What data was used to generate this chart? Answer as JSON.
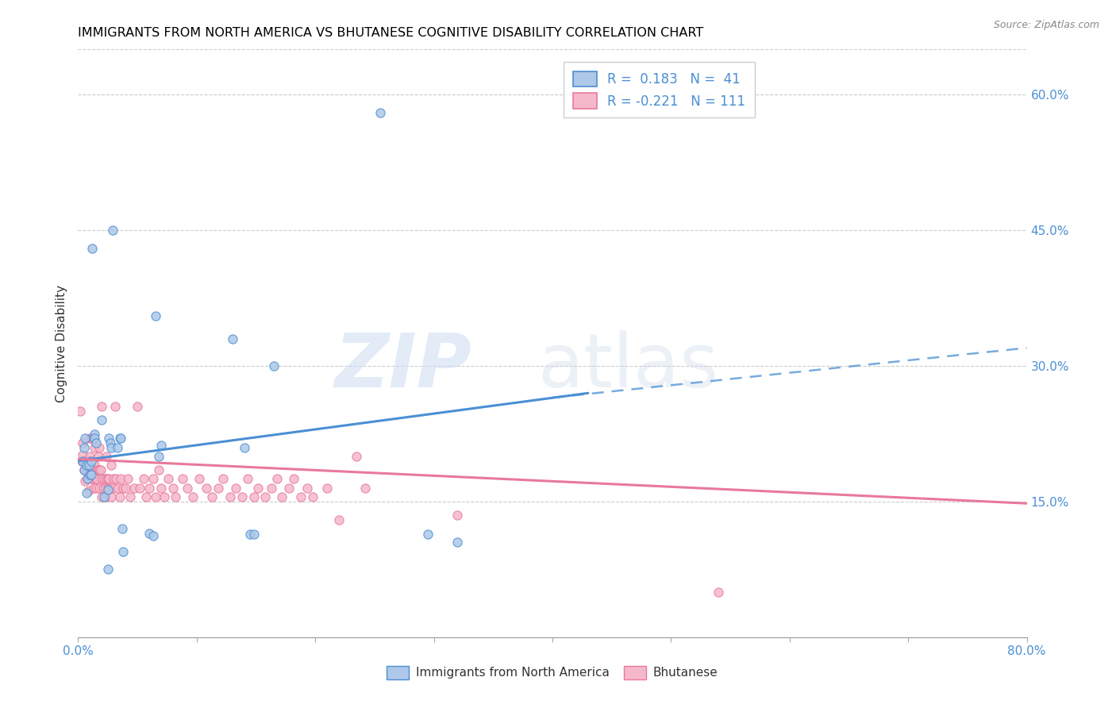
{
  "title": "IMMIGRANTS FROM NORTH AMERICA VS BHUTANESE COGNITIVE DISABILITY CORRELATION CHART",
  "source": "Source: ZipAtlas.com",
  "ylabel": "Cognitive Disability",
  "xlim": [
    0.0,
    0.8
  ],
  "ylim": [
    0.0,
    0.65
  ],
  "x_ticks": [
    0.0,
    0.1,
    0.2,
    0.3,
    0.4,
    0.5,
    0.6,
    0.7,
    0.8
  ],
  "y_ticks_right": [
    0.15,
    0.3,
    0.45,
    0.6
  ],
  "y_tick_labels_right": [
    "15.0%",
    "30.0%",
    "45.0%",
    "60.0%"
  ],
  "blue_color": "#adc8e8",
  "pink_color": "#f5b8cb",
  "line_blue": "#4a8fd4",
  "line_pink": "#e8799a",
  "blue_scatter": [
    [
      0.004,
      0.195
    ],
    [
      0.005,
      0.21
    ],
    [
      0.005,
      0.185
    ],
    [
      0.006,
      0.22
    ],
    [
      0.007,
      0.19
    ],
    [
      0.007,
      0.16
    ],
    [
      0.008,
      0.175
    ],
    [
      0.009,
      0.19
    ],
    [
      0.01,
      0.18
    ],
    [
      0.011,
      0.18
    ],
    [
      0.011,
      0.195
    ],
    [
      0.012,
      0.43
    ],
    [
      0.014,
      0.225
    ],
    [
      0.014,
      0.22
    ],
    [
      0.015,
      0.215
    ],
    [
      0.02,
      0.24
    ],
    [
      0.022,
      0.155
    ],
    [
      0.025,
      0.163
    ],
    [
      0.025,
      0.075
    ],
    [
      0.026,
      0.22
    ],
    [
      0.027,
      0.215
    ],
    [
      0.028,
      0.21
    ],
    [
      0.029,
      0.45
    ],
    [
      0.033,
      0.21
    ],
    [
      0.035,
      0.22
    ],
    [
      0.036,
      0.22
    ],
    [
      0.037,
      0.12
    ],
    [
      0.038,
      0.095
    ],
    [
      0.06,
      0.115
    ],
    [
      0.063,
      0.112
    ],
    [
      0.065,
      0.355
    ],
    [
      0.068,
      0.2
    ],
    [
      0.07,
      0.212
    ],
    [
      0.13,
      0.33
    ],
    [
      0.14,
      0.21
    ],
    [
      0.145,
      0.114
    ],
    [
      0.148,
      0.114
    ],
    [
      0.165,
      0.3
    ],
    [
      0.255,
      0.58
    ],
    [
      0.295,
      0.114
    ],
    [
      0.32,
      0.105
    ]
  ],
  "pink_scatter": [
    [
      0.002,
      0.25
    ],
    [
      0.003,
      0.195
    ],
    [
      0.004,
      0.215
    ],
    [
      0.004,
      0.202
    ],
    [
      0.005,
      0.195
    ],
    [
      0.005,
      0.185
    ],
    [
      0.006,
      0.185
    ],
    [
      0.006,
      0.173
    ],
    [
      0.007,
      0.195
    ],
    [
      0.007,
      0.183
    ],
    [
      0.008,
      0.185
    ],
    [
      0.008,
      0.175
    ],
    [
      0.009,
      0.195
    ],
    [
      0.009,
      0.185
    ],
    [
      0.009,
      0.175
    ],
    [
      0.009,
      0.162
    ],
    [
      0.01,
      0.2
    ],
    [
      0.01,
      0.185
    ],
    [
      0.01,
      0.22
    ],
    [
      0.01,
      0.195
    ],
    [
      0.01,
      0.185
    ],
    [
      0.011,
      0.22
    ],
    [
      0.011,
      0.195
    ],
    [
      0.011,
      0.182
    ],
    [
      0.012,
      0.185
    ],
    [
      0.012,
      0.175
    ],
    [
      0.012,
      0.22
    ],
    [
      0.012,
      0.175
    ],
    [
      0.013,
      0.185
    ],
    [
      0.013,
      0.165
    ],
    [
      0.013,
      0.22
    ],
    [
      0.014,
      0.21
    ],
    [
      0.014,
      0.19
    ],
    [
      0.015,
      0.175
    ],
    [
      0.015,
      0.165
    ],
    [
      0.016,
      0.185
    ],
    [
      0.016,
      0.175
    ],
    [
      0.017,
      0.2
    ],
    [
      0.017,
      0.185
    ],
    [
      0.018,
      0.21
    ],
    [
      0.018,
      0.185
    ],
    [
      0.018,
      0.165
    ],
    [
      0.019,
      0.185
    ],
    [
      0.02,
      0.175
    ],
    [
      0.02,
      0.155
    ],
    [
      0.02,
      0.255
    ],
    [
      0.021,
      0.165
    ],
    [
      0.022,
      0.175
    ],
    [
      0.023,
      0.165
    ],
    [
      0.023,
      0.155
    ],
    [
      0.024,
      0.2
    ],
    [
      0.024,
      0.175
    ],
    [
      0.025,
      0.175
    ],
    [
      0.025,
      0.165
    ],
    [
      0.026,
      0.175
    ],
    [
      0.027,
      0.165
    ],
    [
      0.028,
      0.19
    ],
    [
      0.028,
      0.155
    ],
    [
      0.03,
      0.175
    ],
    [
      0.03,
      0.165
    ],
    [
      0.031,
      0.255
    ],
    [
      0.032,
      0.175
    ],
    [
      0.033,
      0.165
    ],
    [
      0.035,
      0.155
    ],
    [
      0.036,
      0.175
    ],
    [
      0.038,
      0.165
    ],
    [
      0.04,
      0.165
    ],
    [
      0.042,
      0.175
    ],
    [
      0.044,
      0.155
    ],
    [
      0.047,
      0.165
    ],
    [
      0.05,
      0.255
    ],
    [
      0.052,
      0.165
    ],
    [
      0.055,
      0.175
    ],
    [
      0.057,
      0.155
    ],
    [
      0.06,
      0.165
    ],
    [
      0.063,
      0.175
    ],
    [
      0.065,
      0.155
    ],
    [
      0.068,
      0.185
    ],
    [
      0.07,
      0.165
    ],
    [
      0.073,
      0.155
    ],
    [
      0.076,
      0.175
    ],
    [
      0.08,
      0.165
    ],
    [
      0.082,
      0.155
    ],
    [
      0.088,
      0.175
    ],
    [
      0.092,
      0.165
    ],
    [
      0.097,
      0.155
    ],
    [
      0.102,
      0.175
    ],
    [
      0.108,
      0.165
    ],
    [
      0.113,
      0.155
    ],
    [
      0.118,
      0.165
    ],
    [
      0.122,
      0.175
    ],
    [
      0.128,
      0.155
    ],
    [
      0.133,
      0.165
    ],
    [
      0.138,
      0.155
    ],
    [
      0.143,
      0.175
    ],
    [
      0.148,
      0.155
    ],
    [
      0.152,
      0.165
    ],
    [
      0.158,
      0.155
    ],
    [
      0.163,
      0.165
    ],
    [
      0.168,
      0.175
    ],
    [
      0.172,
      0.155
    ],
    [
      0.178,
      0.165
    ],
    [
      0.182,
      0.175
    ],
    [
      0.188,
      0.155
    ],
    [
      0.193,
      0.165
    ],
    [
      0.198,
      0.155
    ],
    [
      0.21,
      0.165
    ],
    [
      0.22,
      0.13
    ],
    [
      0.235,
      0.2
    ],
    [
      0.242,
      0.165
    ],
    [
      0.32,
      0.135
    ],
    [
      0.54,
      0.05
    ]
  ],
  "blue_line_solid": [
    [
      0.0,
      0.195
    ],
    [
      0.43,
      0.27
    ]
  ],
  "blue_line_dashed": [
    [
      0.4,
      0.265
    ],
    [
      0.8,
      0.32
    ]
  ],
  "pink_line": [
    [
      0.0,
      0.197
    ],
    [
      0.8,
      0.148
    ]
  ]
}
